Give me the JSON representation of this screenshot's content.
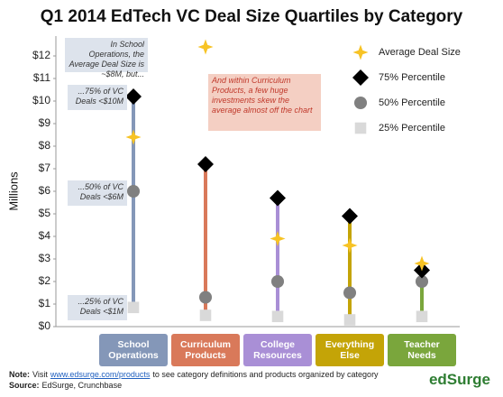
{
  "chart_data": {
    "type": "quartile",
    "title": "Q1 2014 EdTech VC Deal Size Quartiles by Category",
    "y_label": "Millions",
    "categories": [
      "School Operations",
      "Curriculum Products",
      "College Resources",
      "Everything Else",
      "Teacher Needs"
    ],
    "category_colors": [
      "#8497b8",
      "#d9795a",
      "#a98fd6",
      "#c4a407",
      "#7aa63c"
    ],
    "series": [
      {
        "name": "Average Deal Size",
        "marker": "star",
        "color": "#f7c325",
        "values": [
          8.4,
          12.4,
          3.9,
          3.6,
          2.8
        ]
      },
      {
        "name": "75% Percentile",
        "marker": "diamond",
        "color": "#000000",
        "values": [
          10.2,
          7.2,
          5.7,
          4.9,
          2.5
        ]
      },
      {
        "name": "50% Percentile",
        "marker": "circle",
        "color": "#808080",
        "values": [
          6.0,
          1.3,
          2.0,
          1.5,
          2.0
        ]
      },
      {
        "name": "25% Percentile",
        "marker": "square",
        "color": "#d9d9d9",
        "values": [
          0.85,
          0.5,
          0.45,
          0.3,
          0.45
        ]
      }
    ],
    "ylim": [
      0,
      12
    ],
    "yticks": [
      {
        "value": 0,
        "label": "$0"
      },
      {
        "value": 1,
        "label": "$1"
      },
      {
        "value": 2,
        "label": "$2"
      },
      {
        "value": 3,
        "label": "$3"
      },
      {
        "value": 4,
        "label": "$4"
      },
      {
        "value": 5,
        "label": "$5"
      },
      {
        "value": 6,
        "label": "$6"
      },
      {
        "value": 7,
        "label": "$7"
      },
      {
        "value": 8,
        "label": "$8"
      },
      {
        "value": 9,
        "label": "$9"
      },
      {
        "value": 10,
        "label": "$10"
      },
      {
        "value": 11,
        "label": "$11"
      },
      {
        "value": 12,
        "label": "$12"
      }
    ],
    "legend": "top-right",
    "annotations": [
      "In School Operations, the Average Deal Size is ~$8M, but...",
      "...75% of VC Deals <$10M",
      "...50% of VC Deals <$6M",
      "...25% of VC Deals <$1M",
      "And within Curriculum Products, a few huge investments skew the average almost off the chart"
    ],
    "note_label": "Note:",
    "note_pre": "Visit",
    "note_link": "www.edsurge.com/products",
    "note_post": "to see category definitions and products organized by category",
    "source_label": "Source:",
    "source": "EdSurge, Crunchbase",
    "brand": "edSurge"
  }
}
